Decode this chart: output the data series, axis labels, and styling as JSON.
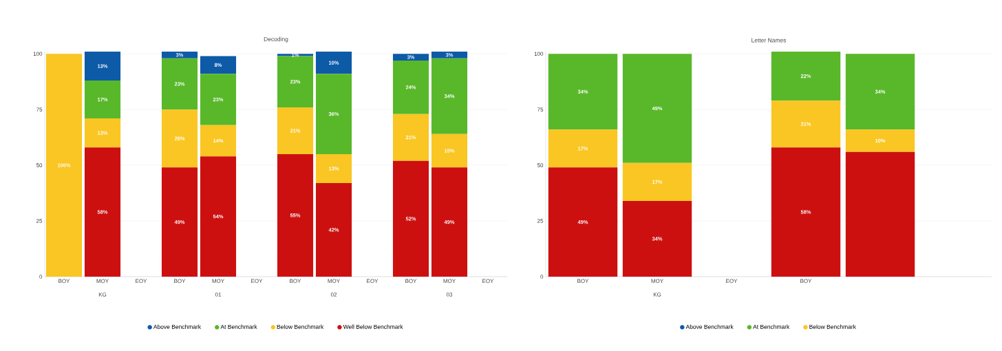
{
  "chart_data": [
    {
      "type": "bar",
      "title": "Decoding",
      "stacked": true,
      "grid": "y",
      "legend": "bottom",
      "categories": [
        "BOY",
        "MOY",
        "EOY",
        "BOY",
        "MOY",
        "EOY",
        "BOY",
        "MOY",
        "EOY",
        "BOY",
        "MOY",
        "EOY"
      ],
      "annotations": [
        "KG",
        "01",
        "02",
        "03"
      ],
      "ylim": [
        0,
        101
      ],
      "yticks": [
        0,
        25,
        50,
        75,
        100
      ],
      "series": [
        {
          "name": "Well Below Benchmark",
          "color": "#cc1010",
          "values": [
            null,
            58,
            null,
            49,
            54,
            null,
            55,
            42,
            null,
            52,
            49,
            null
          ],
          "value_labels": [
            null,
            "58%",
            null,
            "49%",
            "54%",
            null,
            "55%",
            "42%",
            null,
            "52%",
            "49%",
            null
          ]
        },
        {
          "name": "Below Benchmark",
          "color": "#f9c623",
          "values": [
            100,
            13,
            null,
            26,
            14,
            null,
            21,
            13,
            null,
            21,
            15,
            null
          ],
          "value_labels": [
            "100%",
            "13%",
            null,
            "26%",
            "14%",
            null,
            "21%",
            "13%",
            null,
            "21%",
            "15%",
            null
          ]
        },
        {
          "name": "At Benchmark",
          "color": "#58b82a",
          "values": [
            null,
            17,
            null,
            23,
            23,
            null,
            23,
            36,
            null,
            24,
            34,
            null
          ],
          "value_labels": [
            null,
            "17%",
            null,
            "23%",
            "23%",
            null,
            "23%",
            "36%",
            null,
            "24%",
            "34%",
            null
          ]
        },
        {
          "name": "Above Benchmark",
          "color": "#0d5aa7",
          "values": [
            null,
            13,
            null,
            3,
            8,
            null,
            1,
            10,
            null,
            3,
            3,
            null
          ],
          "value_labels": [
            null,
            "13%",
            null,
            "3%",
            "8%",
            null,
            "1%",
            "10%",
            null,
            "3%",
            "3%",
            null
          ]
        }
      ]
    },
    {
      "type": "bar",
      "title": "Letter Names",
      "stacked": true,
      "grid": "y",
      "legend": "bottom",
      "categories": [
        "BOY",
        "MOY",
        "EOY",
        "BOY",
        null,
        null
      ],
      "annotations": [
        "KG"
      ],
      "ylim": [
        0,
        101
      ],
      "yticks": [
        0,
        25,
        50,
        75,
        100
      ],
      "series": [
        {
          "color": "#cc1010",
          "values": [
            49,
            34,
            null,
            58,
            56,
            null
          ],
          "value_labels": [
            "49%",
            "34%",
            null,
            "58%",
            null,
            null
          ]
        },
        {
          "name": "Below Benchmark",
          "color": "#f9c623",
          "values": [
            17,
            17,
            null,
            21,
            10,
            null
          ],
          "value_labels": [
            "17%",
            "17%",
            null,
            "21%",
            "10%",
            null
          ]
        },
        {
          "name": "At Benchmark",
          "color": "#58b82a",
          "values": [
            34,
            49,
            null,
            22,
            34,
            null
          ],
          "value_labels": [
            "34%",
            "49%",
            null,
            "22%",
            "34%",
            null
          ]
        },
        {
          "name": "Above Benchmark",
          "color": "#0d5aa7",
          "values": [
            null,
            null,
            null,
            null,
            null,
            null
          ]
        }
      ]
    }
  ]
}
